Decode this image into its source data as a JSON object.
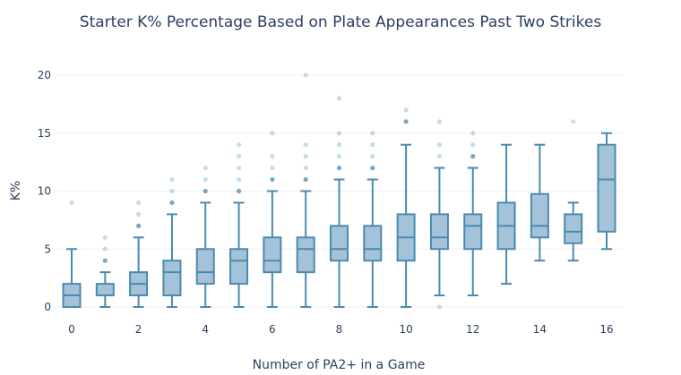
{
  "chart_data": {
    "type": "box",
    "title": "Starter K% Percentage Based on Plate Appearances Past Two Strikes",
    "xlabel": "Number of PA2+ in a Game",
    "ylabel": "K%",
    "xlim": [
      -0.45,
      16.45
    ],
    "ylim": [
      0,
      20
    ],
    "x_ticks": [
      "0",
      "2",
      "4",
      "6",
      "8",
      "10",
      "12",
      "14",
      "16"
    ],
    "x_tick_values": [
      0,
      2,
      4,
      6,
      8,
      10,
      12,
      14,
      16
    ],
    "y_ticks": [
      "0",
      "5",
      "10",
      "15",
      "20"
    ],
    "y_tick_values": [
      0,
      5,
      10,
      15,
      20
    ],
    "grid": true,
    "color": "#4a8ab0",
    "fill": "#a5c3d8",
    "boxes": [
      {
        "x": 0,
        "low": 0,
        "q1": 0,
        "median": 1,
        "q3": 2,
        "high": 5,
        "outliers": [
          9
        ]
      },
      {
        "x": 1,
        "low": 0,
        "q1": 1,
        "median": 1,
        "q3": 2,
        "high": 3,
        "outliers": [
          4,
          5,
          6
        ]
      },
      {
        "x": 2,
        "low": 0,
        "q1": 1,
        "median": 2,
        "q3": 3,
        "high": 6,
        "outliers": [
          7,
          8,
          9
        ]
      },
      {
        "x": 3,
        "low": 0,
        "q1": 1,
        "median": 3,
        "q3": 4,
        "high": 8,
        "outliers": [
          9,
          10,
          11
        ]
      },
      {
        "x": 4,
        "low": 0,
        "q1": 2,
        "median": 3,
        "q3": 5,
        "high": 9,
        "outliers": [
          10,
          11,
          12
        ]
      },
      {
        "x": 5,
        "low": 0,
        "q1": 2,
        "median": 4,
        "q3": 5,
        "high": 9,
        "outliers": [
          10,
          11,
          12,
          13,
          14
        ]
      },
      {
        "x": 6,
        "low": 0,
        "q1": 3,
        "median": 4,
        "q3": 6,
        "high": 10,
        "outliers": [
          11,
          12,
          13,
          15
        ]
      },
      {
        "x": 7,
        "low": 0,
        "q1": 3,
        "median": 5,
        "q3": 6,
        "high": 10,
        "outliers": [
          11,
          12,
          13,
          14,
          20
        ]
      },
      {
        "x": 8,
        "low": 0,
        "q1": 4,
        "median": 5,
        "q3": 7,
        "high": 11,
        "outliers": [
          12,
          13,
          14,
          15,
          18
        ]
      },
      {
        "x": 9,
        "low": 0,
        "q1": 4,
        "median": 5,
        "q3": 7,
        "high": 11,
        "outliers": [
          12,
          13,
          14,
          15
        ]
      },
      {
        "x": 10,
        "low": 0,
        "q1": 4,
        "median": 6,
        "q3": 8,
        "high": 14,
        "outliers": [
          16,
          17
        ]
      },
      {
        "x": 11,
        "low": 1,
        "q1": 5,
        "median": 6,
        "q3": 8,
        "high": 12,
        "outliers": [
          0,
          13,
          14,
          16
        ]
      },
      {
        "x": 12,
        "low": 1,
        "q1": 5,
        "median": 7,
        "q3": 8,
        "high": 12,
        "outliers": [
          13,
          14,
          15
        ]
      },
      {
        "x": 13,
        "low": 2,
        "q1": 5,
        "median": 7,
        "q3": 9,
        "high": 14,
        "outliers": []
      },
      {
        "x": 14,
        "low": 4,
        "q1": 6,
        "median": 7,
        "q3": 9.75,
        "high": 14,
        "outliers": []
      },
      {
        "x": 15,
        "low": 4,
        "q1": 5.5,
        "median": 6.5,
        "q3": 8,
        "high": 9,
        "outliers": [
          16
        ]
      },
      {
        "x": 16,
        "low": 5,
        "q1": 6.5,
        "median": 11,
        "q3": 14,
        "high": 15,
        "outliers": []
      }
    ]
  }
}
